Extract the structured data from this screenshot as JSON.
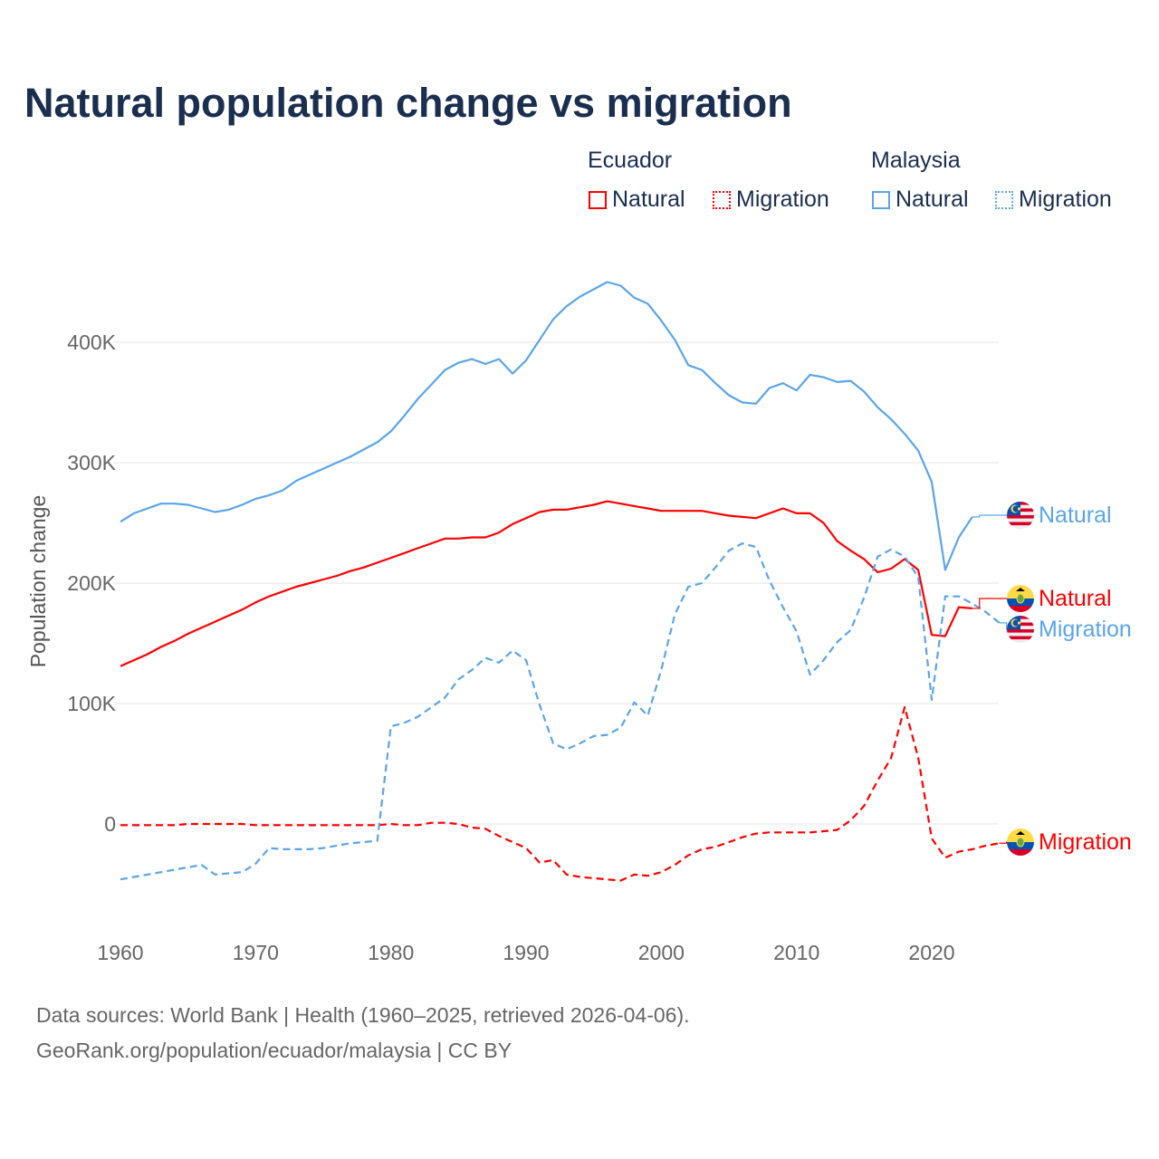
{
  "title": "Natural population change vs migration",
  "legend": {
    "groups": [
      {
        "name": "Ecuador",
        "items": [
          "Natural",
          "Migration"
        ]
      },
      {
        "name": "Malaysia",
        "items": [
          "Natural",
          "Migration"
        ]
      }
    ]
  },
  "colors": {
    "ecuador": "#ff0000",
    "malaysia": "#5aa5ea",
    "title": "#1a2e4f"
  },
  "end_labels": {
    "malaysia_natural": "Natural",
    "ecuador_natural": "Natural",
    "malaysia_migration": "Migration",
    "ecuador_migration": "Migration"
  },
  "footer": {
    "line1": "Data sources: World Bank | Health (1960–2025, retrieved 2026-04-06).",
    "line2": "GeoRank.org/population/ecuador/malaysia | CC BY"
  },
  "chart_data": {
    "type": "line",
    "title": "Natural population change vs migration",
    "xlabel": "",
    "ylabel": "Population change",
    "xlim": [
      1960,
      2025
    ],
    "ylim": [
      -80000,
      470000
    ],
    "x_ticks": [
      1960,
      1970,
      1980,
      1990,
      2000,
      2010,
      2020
    ],
    "x_tick_labels": [
      "1960",
      "1970",
      "1980",
      "1990",
      "2000",
      "2010",
      "2020"
    ],
    "y_ticks": [
      0,
      100000,
      200000,
      300000,
      400000
    ],
    "y_tick_labels": [
      "0",
      "100K",
      "200K",
      "300K",
      "400K"
    ],
    "grid": "horizontal",
    "x_start": 1960,
    "series": [
      {
        "name": "Ecuador Natural",
        "color": "#ff0000",
        "dash": false,
        "values_k": [
          131,
          136,
          141,
          147,
          152,
          158,
          163,
          168,
          173,
          178,
          184,
          189,
          193,
          197,
          200,
          203,
          206,
          210,
          213,
          217,
          221,
          225,
          229,
          233,
          237,
          237,
          238,
          238,
          242,
          249,
          254,
          259,
          261,
          261,
          263,
          265,
          268,
          266,
          264,
          262,
          260,
          260,
          260,
          260,
          258,
          256,
          255,
          254,
          258,
          262,
          258,
          258,
          250,
          235,
          227,
          220,
          209,
          212,
          220,
          211,
          157,
          156,
          180,
          179,
          null,
          null
        ]
      },
      {
        "name": "Ecuador Migration",
        "color": "#ff0000",
        "dash": true,
        "values_k": [
          -1,
          -1,
          -1,
          -1,
          -1,
          0,
          0,
          0,
          0,
          0,
          -1,
          -1,
          -1,
          -1,
          -1,
          -1,
          -1,
          -1,
          -1,
          -1,
          0,
          -1,
          -1,
          1,
          1,
          0,
          -3,
          -4,
          -10,
          -15,
          -20,
          -32,
          -30,
          -42,
          -44,
          -45,
          -46,
          -47,
          -42,
          -43,
          -40,
          -34,
          -26,
          -21,
          -19,
          -15,
          -11,
          -8,
          -7,
          -7,
          -7,
          -7,
          -6,
          -5,
          3,
          15,
          36,
          55,
          97,
          55,
          -12,
          -28,
          -23,
          -21,
          -18,
          -16
        ]
      },
      {
        "name": "Malaysia Natural",
        "color": "#5aa5ea",
        "dash": false,
        "values_k": [
          251,
          258,
          262,
          266,
          266,
          265,
          262,
          259,
          261,
          265,
          270,
          273,
          277,
          285,
          290,
          295,
          300,
          305,
          311,
          317,
          326,
          339,
          353,
          365,
          377,
          383,
          386,
          382,
          386,
          374,
          385,
          402,
          419,
          430,
          438,
          444,
          450,
          447,
          437,
          432,
          418,
          402,
          381,
          377,
          366,
          356,
          350,
          349,
          362,
          366,
          360,
          373,
          371,
          367,
          368,
          359,
          346,
          336,
          324,
          310,
          284,
          211,
          238,
          255,
          null,
          null
        ]
      },
      {
        "name": "Malaysia Migration",
        "color": "#5aa5ea",
        "dash": true,
        "values_k": [
          -46,
          -44,
          -42,
          -40,
          -38,
          -36,
          -34,
          -42,
          -41,
          -40,
          -33,
          -20,
          -21,
          -21,
          -21,
          -20,
          -18,
          -16,
          -15,
          -14,
          81,
          84,
          89,
          97,
          105,
          120,
          128,
          138,
          134,
          144,
          136,
          99,
          67,
          62,
          67,
          73,
          74,
          80,
          101,
          90,
          128,
          174,
          197,
          200,
          213,
          227,
          233,
          230,
          202,
          180,
          160,
          124,
          136,
          151,
          161,
          188,
          222,
          228,
          222,
          205,
          103,
          189,
          189,
          183,
          176,
          167
        ]
      }
    ]
  }
}
